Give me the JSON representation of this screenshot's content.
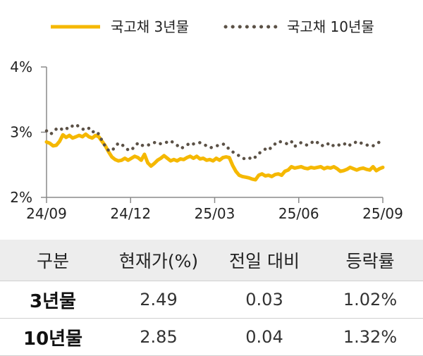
{
  "chart_data": {
    "type": "line",
    "x_ticks": [
      "24/09",
      "24/12",
      "25/03",
      "25/06",
      "25/09"
    ],
    "y_ticks": [
      "4%",
      "3%",
      "2%"
    ],
    "ylim": [
      2,
      4
    ],
    "grid": false,
    "legend_position": "top",
    "series": [
      {
        "name": "국고채 3년물",
        "style": "solid",
        "color": "#f5b800",
        "values": [
          2.85,
          2.83,
          2.79,
          2.8,
          2.86,
          2.96,
          2.92,
          2.95,
          2.91,
          2.93,
          2.95,
          2.93,
          2.97,
          2.93,
          2.91,
          2.95,
          2.93,
          2.86,
          2.79,
          2.7,
          2.62,
          2.58,
          2.56,
          2.57,
          2.6,
          2.57,
          2.6,
          2.63,
          2.61,
          2.57,
          2.66,
          2.53,
          2.48,
          2.52,
          2.57,
          2.6,
          2.64,
          2.6,
          2.56,
          2.58,
          2.56,
          2.59,
          2.58,
          2.61,
          2.63,
          2.6,
          2.63,
          2.59,
          2.6,
          2.57,
          2.58,
          2.56,
          2.6,
          2.57,
          2.61,
          2.62,
          2.61,
          2.49,
          2.4,
          2.34,
          2.32,
          2.31,
          2.3,
          2.28,
          2.27,
          2.34,
          2.36,
          2.33,
          2.34,
          2.32,
          2.35,
          2.36,
          2.34,
          2.4,
          2.42,
          2.47,
          2.45,
          2.46,
          2.47,
          2.45,
          2.44,
          2.46,
          2.45,
          2.46,
          2.47,
          2.44,
          2.46,
          2.45,
          2.47,
          2.44,
          2.4,
          2.41,
          2.43,
          2.46,
          2.44,
          2.42,
          2.44,
          2.45,
          2.43,
          2.42,
          2.47,
          2.41,
          2.44,
          2.46
        ]
      },
      {
        "name": "국고채 10년물",
        "style": "dotted",
        "color": "#5b5146",
        "values": [
          3.02,
          2.97,
          2.99,
          3.05,
          3.07,
          3.03,
          3.06,
          3.05,
          3.1,
          3.12,
          3.08,
          3.05,
          3.03,
          3.06,
          3.0,
          3.02,
          2.97,
          2.87,
          2.78,
          2.72,
          2.71,
          2.78,
          2.83,
          2.82,
          2.76,
          2.73,
          2.72,
          2.79,
          2.83,
          2.79,
          2.81,
          2.8,
          2.82,
          2.84,
          2.85,
          2.82,
          2.83,
          2.85,
          2.87,
          2.83,
          2.8,
          2.75,
          2.77,
          2.8,
          2.84,
          2.82,
          2.83,
          2.84,
          2.82,
          2.79,
          2.76,
          2.77,
          2.79,
          2.8,
          2.82,
          2.8,
          2.73,
          2.7,
          2.66,
          2.64,
          2.6,
          2.59,
          2.61,
          2.58,
          2.62,
          2.67,
          2.71,
          2.74,
          2.72,
          2.78,
          2.82,
          2.86,
          2.85,
          2.83,
          2.82,
          2.86,
          2.78,
          2.82,
          2.84,
          2.81,
          2.8,
          2.83,
          2.87,
          2.84,
          2.79,
          2.8,
          2.83,
          2.78,
          2.8,
          2.82,
          2.79,
          2.81,
          2.84,
          2.8,
          2.82,
          2.86,
          2.84,
          2.82,
          2.8,
          2.81,
          2.79,
          2.82,
          2.85,
          2.83
        ]
      }
    ]
  },
  "table": {
    "headers": [
      "구분",
      "현재가(%)",
      "전일 대비",
      "등락률"
    ],
    "rows": [
      [
        "3년물",
        "2.49",
        "0.03",
        "1.02%"
      ],
      [
        "10년물",
        "2.85",
        "0.04",
        "1.32%"
      ]
    ]
  }
}
